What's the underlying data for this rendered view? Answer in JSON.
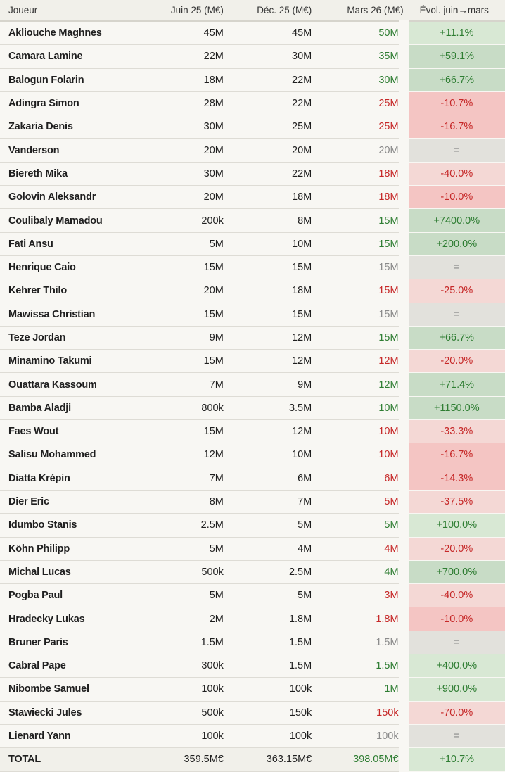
{
  "headers": [
    "Joueur",
    "Juin 25 (M€)",
    "Déc. 25 (M€)",
    "Mars 26 (M€)",
    "Évol. juin→mars"
  ],
  "colors": {
    "up": "#2e7d32",
    "down": "#c62828",
    "flat": "#8a8a8a"
  },
  "rows": [
    {
      "name": "Akliouche Maghnes",
      "jun": "45M",
      "dec": "45M",
      "mar": "50M",
      "evol": "+11.1%",
      "dir": "up",
      "tone": "g1"
    },
    {
      "name": "Camara Lamine",
      "jun": "22M",
      "dec": "30M",
      "mar": "35M",
      "evol": "+59.1%",
      "dir": "up",
      "tone": "g2"
    },
    {
      "name": "Balogun Folarin",
      "jun": "18M",
      "dec": "22M",
      "mar": "30M",
      "evol": "+66.7%",
      "dir": "up",
      "tone": "g2"
    },
    {
      "name": "Adingra Simon",
      "jun": "28M",
      "dec": "22M",
      "mar": "25M",
      "evol": "-10.7%",
      "dir": "down",
      "tone": "r2"
    },
    {
      "name": "Zakaria Denis",
      "jun": "30M",
      "dec": "25M",
      "mar": "25M",
      "evol": "-16.7%",
      "dir": "down",
      "tone": "r2"
    },
    {
      "name": "Vanderson",
      "jun": "20M",
      "dec": "20M",
      "mar": "20M",
      "evol": "=",
      "dir": "flat",
      "tone": "n"
    },
    {
      "name": "Biereth Mika",
      "jun": "30M",
      "dec": "22M",
      "mar": "18M",
      "evol": "-40.0%",
      "dir": "down",
      "tone": "r1"
    },
    {
      "name": "Golovin Aleksandr",
      "jun": "20M",
      "dec": "18M",
      "mar": "18M",
      "evol": "-10.0%",
      "dir": "down",
      "tone": "r2"
    },
    {
      "name": "Coulibaly Mamadou",
      "jun": "200k",
      "dec": "8M",
      "mar": "15M",
      "evol": "+7400.0%",
      "dir": "up",
      "tone": "g2"
    },
    {
      "name": "Fati Ansu",
      "jun": "5M",
      "dec": "10M",
      "mar": "15M",
      "evol": "+200.0%",
      "dir": "up",
      "tone": "g2"
    },
    {
      "name": "Henrique Caio",
      "jun": "15M",
      "dec": "15M",
      "mar": "15M",
      "evol": "=",
      "dir": "flat",
      "tone": "n"
    },
    {
      "name": "Kehrer Thilo",
      "jun": "20M",
      "dec": "18M",
      "mar": "15M",
      "evol": "-25.0%",
      "dir": "down",
      "tone": "r1"
    },
    {
      "name": "Mawissa Christian",
      "jun": "15M",
      "dec": "15M",
      "mar": "15M",
      "evol": "=",
      "dir": "flat",
      "tone": "n"
    },
    {
      "name": "Teze Jordan",
      "jun": "9M",
      "dec": "12M",
      "mar": "15M",
      "evol": "+66.7%",
      "dir": "up",
      "tone": "g2"
    },
    {
      "name": "Minamino Takumi",
      "jun": "15M",
      "dec": "12M",
      "mar": "12M",
      "evol": "-20.0%",
      "dir": "down",
      "tone": "r1"
    },
    {
      "name": "Ouattara Kassoum",
      "jun": "7M",
      "dec": "9M",
      "mar": "12M",
      "evol": "+71.4%",
      "dir": "up",
      "tone": "g2"
    },
    {
      "name": "Bamba Aladji",
      "jun": "800k",
      "dec": "3.5M",
      "mar": "10M",
      "evol": "+1150.0%",
      "dir": "up",
      "tone": "g2"
    },
    {
      "name": "Faes Wout",
      "jun": "15M",
      "dec": "12M",
      "mar": "10M",
      "evol": "-33.3%",
      "dir": "down",
      "tone": "r1"
    },
    {
      "name": "Salisu Mohammed",
      "jun": "12M",
      "dec": "10M",
      "mar": "10M",
      "evol": "-16.7%",
      "dir": "down",
      "tone": "r2"
    },
    {
      "name": "Diatta Krépin",
      "jun": "7M",
      "dec": "6M",
      "mar": "6M",
      "evol": "-14.3%",
      "dir": "down",
      "tone": "r2"
    },
    {
      "name": "Dier Eric",
      "jun": "8M",
      "dec": "7M",
      "mar": "5M",
      "evol": "-37.5%",
      "dir": "down",
      "tone": "r1"
    },
    {
      "name": "Idumbo Stanis",
      "jun": "2.5M",
      "dec": "5M",
      "mar": "5M",
      "evol": "+100.0%",
      "dir": "up",
      "tone": "g1"
    },
    {
      "name": "Köhn Philipp",
      "jun": "5M",
      "dec": "4M",
      "mar": "4M",
      "evol": "-20.0%",
      "dir": "down",
      "tone": "r1"
    },
    {
      "name": "Michal Lucas",
      "jun": "500k",
      "dec": "2.5M",
      "mar": "4M",
      "evol": "+700.0%",
      "dir": "up",
      "tone": "g2"
    },
    {
      "name": "Pogba Paul",
      "jun": "5M",
      "dec": "5M",
      "mar": "3M",
      "evol": "-40.0%",
      "dir": "down",
      "tone": "r1"
    },
    {
      "name": "Hradecky Lukas",
      "jun": "2M",
      "dec": "1.8M",
      "mar": "1.8M",
      "evol": "-10.0%",
      "dir": "down",
      "tone": "r2"
    },
    {
      "name": "Bruner Paris",
      "jun": "1.5M",
      "dec": "1.5M",
      "mar": "1.5M",
      "evol": "=",
      "dir": "flat",
      "tone": "n"
    },
    {
      "name": "Cabral Pape",
      "jun": "300k",
      "dec": "1.5M",
      "mar": "1.5M",
      "evol": "+400.0%",
      "dir": "up",
      "tone": "g1"
    },
    {
      "name": "Nibombe Samuel",
      "jun": "100k",
      "dec": "100k",
      "mar": "1M",
      "evol": "+900.0%",
      "dir": "up",
      "tone": "g1"
    },
    {
      "name": "Stawiecki Jules",
      "jun": "500k",
      "dec": "150k",
      "mar": "150k",
      "evol": "-70.0%",
      "dir": "down",
      "tone": "r1"
    },
    {
      "name": "Lienard Yann",
      "jun": "100k",
      "dec": "100k",
      "mar": "100k",
      "evol": "=",
      "dir": "flat",
      "tone": "n"
    }
  ],
  "total": {
    "name": "TOTAL",
    "jun": "359.5M€",
    "dec": "363.15M€",
    "mar": "398.05M€",
    "evol": "+10.7%",
    "dir": "up",
    "tone": "g1"
  }
}
